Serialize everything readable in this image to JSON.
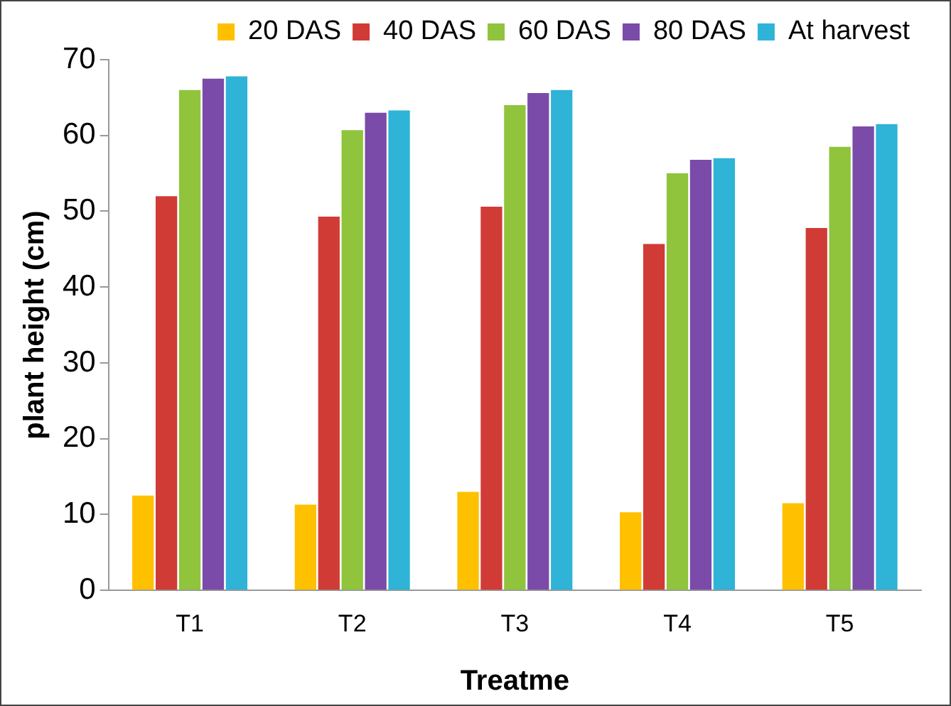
{
  "chart_data": {
    "type": "bar",
    "xlabel": "Treatme",
    "ylabel": "plant height (cm)",
    "categories": [
      "T1",
      "T2",
      "T3",
      "T4",
      "T5"
    ],
    "series": [
      {
        "name": "20 DAS",
        "color": "#ffc000",
        "values": [
          12.5,
          11.3,
          13,
          10.3,
          11.5
        ]
      },
      {
        "name": "40 DAS",
        "color": "#d13b36",
        "values": [
          52,
          49.3,
          50.6,
          45.7,
          47.8
        ]
      },
      {
        "name": "60 DAS",
        "color": "#8fc43c",
        "values": [
          66,
          60.7,
          64,
          55,
          58.5
        ]
      },
      {
        "name": "80 DAS",
        "color": "#7a4ba8",
        "values": [
          67.5,
          63,
          65.6,
          56.8,
          61.2
        ]
      },
      {
        "name": "At harvest",
        "color": "#2fb3d6",
        "values": [
          67.8,
          63.3,
          66,
          57,
          61.5
        ]
      }
    ],
    "ylim": [
      0,
      70
    ],
    "yticks": [
      0,
      10,
      20,
      30,
      40,
      50,
      60,
      70
    ],
    "grid": false,
    "legend": "top right"
  }
}
